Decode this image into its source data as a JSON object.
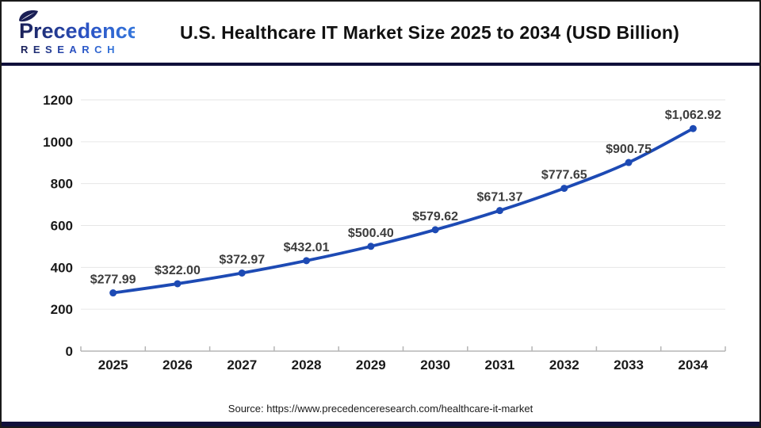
{
  "logo": {
    "brand": "Precedence",
    "sub": "RESEARCH"
  },
  "chart_data": {
    "type": "line",
    "title": "U.S. Healthcare IT Market Size 2025 to 2034 (USD Billion)",
    "categories": [
      "2025",
      "2026",
      "2027",
      "2028",
      "2029",
      "2030",
      "2031",
      "2032",
      "2033",
      "2034"
    ],
    "series": [
      {
        "name": "U.S. Healthcare IT Market Size (USD Billion)",
        "values": [
          277.99,
          322.0,
          372.97,
          432.01,
          500.4,
          579.62,
          671.37,
          777.65,
          900.75,
          1062.92
        ]
      }
    ],
    "point_labels": [
      "$277.99",
      "$322.00",
      "$372.97",
      "$432.01",
      "$500.40",
      "$579.62",
      "$671.37",
      "$777.65",
      "$900.75",
      "$1,062.92"
    ],
    "y_ticks": [
      0,
      200,
      400,
      600,
      800,
      1000,
      1200
    ],
    "ylim": [
      0,
      1200
    ],
    "xlabel": "",
    "ylabel": "",
    "grid": "horizontal",
    "legend": "none",
    "line_color": "#1d4ab4",
    "marker": "circle"
  },
  "footer": {
    "source": "Source: https://www.precedenceresearch.com/healthcare-it-market"
  },
  "colors": {
    "accent_navy": "#10103a",
    "line_blue": "#1d4ab4",
    "point_label_gray": "#3d3d3d",
    "axis_label_black": "#1a1a1a",
    "gridline_gray": "#e6e6e6",
    "axis_line_gray": "#b5b5b5",
    "logo_navy": "#1a1f55",
    "logo_blue": "#3579dd"
  }
}
